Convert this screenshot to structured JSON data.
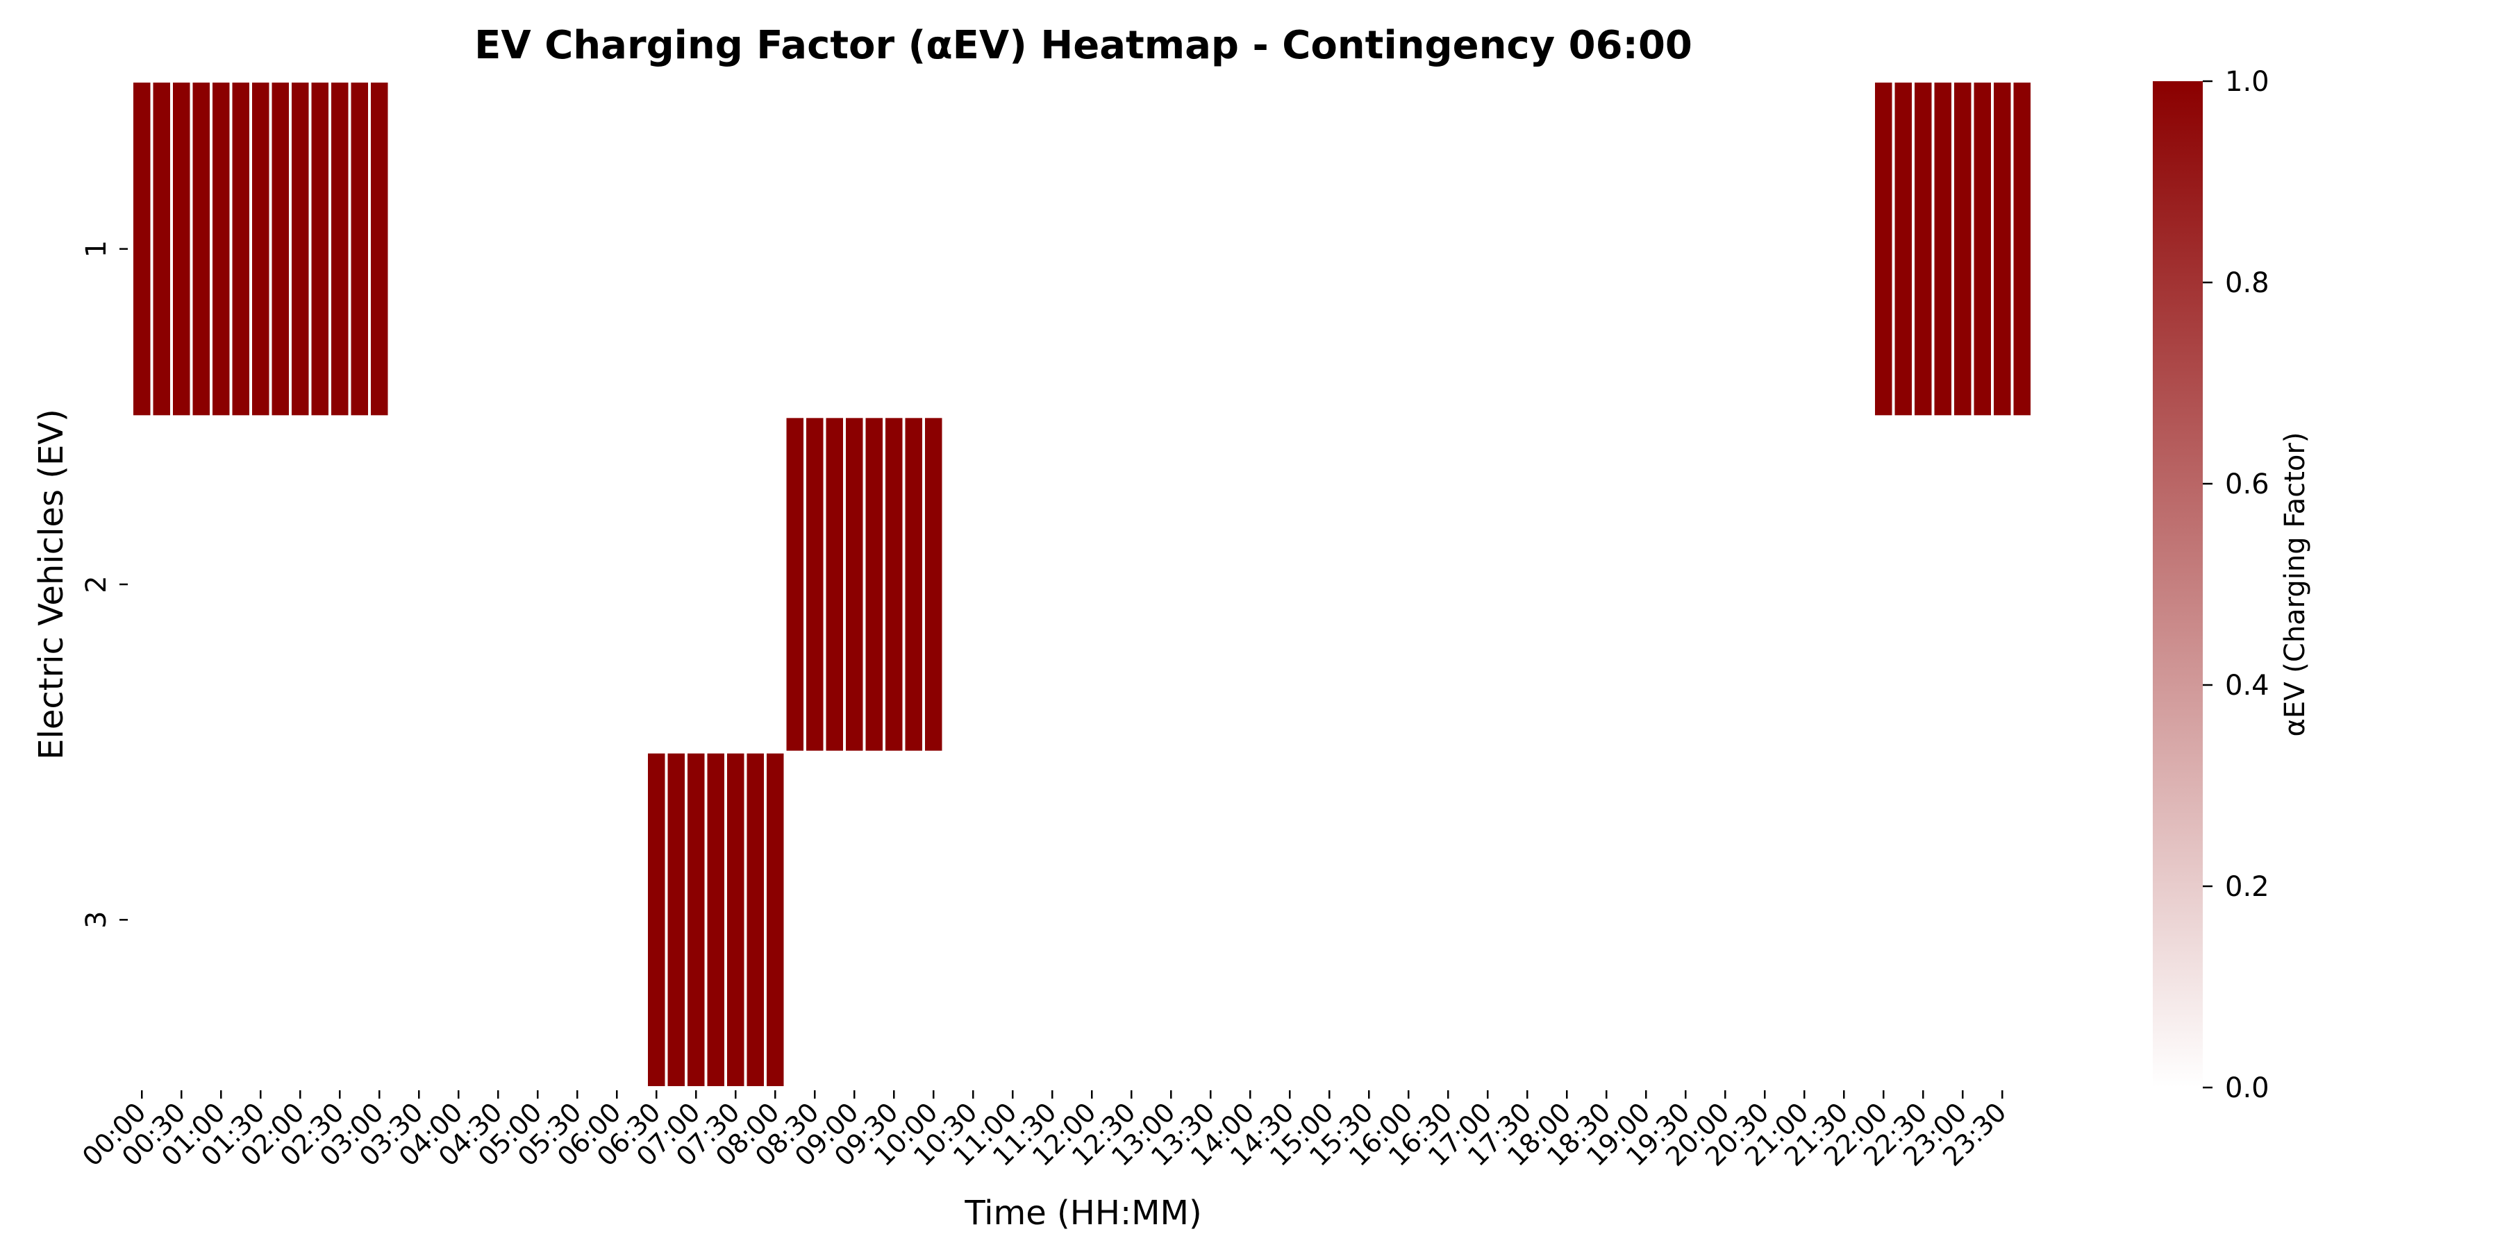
{
  "chart_data": {
    "type": "heatmap",
    "title": "EV Charging Factor (αEV) Heatmap - Contingency 06:00",
    "xlabel": "Time (HH:MM)",
    "ylabel": "Electric Vehicles (EV)",
    "rows": [
      "1",
      "2",
      "3"
    ],
    "x_tick_labels": [
      "00:00",
      "00:30",
      "01:00",
      "01:30",
      "02:00",
      "02:30",
      "03:00",
      "03:30",
      "04:00",
      "04:30",
      "05:00",
      "05:30",
      "06:00",
      "06:30",
      "07:00",
      "07:30",
      "08:00",
      "08:30",
      "09:00",
      "09:30",
      "10:00",
      "10:30",
      "11:00",
      "11:30",
      "12:00",
      "12:30",
      "13:00",
      "13:30",
      "14:00",
      "14:30",
      "15:00",
      "15:30",
      "16:00",
      "16:30",
      "17:00",
      "17:30",
      "18:00",
      "18:30",
      "19:00",
      "19:30",
      "20:00",
      "20:30",
      "21:00",
      "21:30",
      "22:00",
      "22:30",
      "23:00",
      "23:30"
    ],
    "time_steps_per_tick": 2,
    "active_value": 1.0,
    "charging_intervals": [
      {
        "row": "1",
        "start_step": 0,
        "end_step": 12
      },
      {
        "row": "1",
        "start_step": 88,
        "end_step": 95
      },
      {
        "row": "2",
        "start_step": 33,
        "end_step": 40
      },
      {
        "row": "3",
        "start_step": 26,
        "end_step": 32
      }
    ],
    "colorbar": {
      "label": "αEV (Charging Factor)",
      "min": 0.0,
      "max": 1.0,
      "ticks": [
        "0.0",
        "0.2",
        "0.4",
        "0.6",
        "0.8",
        "1.0"
      ],
      "color_low": "#ffffff",
      "color_high": "#8b0000"
    },
    "grid": false,
    "cell_separator_color": "#ffffff"
  }
}
